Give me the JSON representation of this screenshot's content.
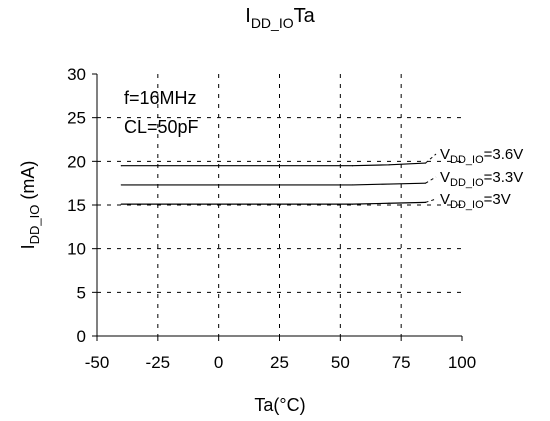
{
  "chart_data": {
    "type": "line",
    "title": "I_DD_IO–Ta",
    "title_parts": [
      {
        "text": "I",
        "sub": false
      },
      {
        "text": "DD_IO",
        "sub": true
      },
      {
        "text": "Ta",
        "sub": false
      }
    ],
    "xlabel": "Ta(°C)",
    "ylabel_parts": [
      {
        "text": "I",
        "sub": false
      },
      {
        "text": "DD_IO",
        "sub": true
      },
      {
        "text": " (mA)",
        "sub": false
      }
    ],
    "xlim": [
      -50,
      100
    ],
    "ylim": [
      0,
      30
    ],
    "xticks": [
      -50,
      -25,
      0,
      25,
      50,
      75,
      100
    ],
    "yticks": [
      0,
      5,
      10,
      15,
      20,
      25,
      30
    ],
    "grid": true,
    "annotations": [
      "f=16MHz",
      "CL=50pF"
    ],
    "series": [
      {
        "label_parts": [
          {
            "text": "V",
            "sub": false
          },
          {
            "text": "DD_IO",
            "sub": true
          },
          {
            "text": "=3.6V",
            "sub": false
          }
        ],
        "x": [
          -40,
          -25,
          0,
          25,
          55,
          70,
          85
        ],
        "y": [
          19.5,
          19.5,
          19.5,
          19.5,
          19.5,
          19.6,
          19.8
        ]
      },
      {
        "label_parts": [
          {
            "text": "V",
            "sub": false
          },
          {
            "text": "DD_IO",
            "sub": true
          },
          {
            "text": "=3.3V",
            "sub": false
          }
        ],
        "x": [
          -40,
          -25,
          0,
          25,
          55,
          70,
          85
        ],
        "y": [
          17.3,
          17.3,
          17.3,
          17.3,
          17.3,
          17.4,
          17.5
        ]
      },
      {
        "label_parts": [
          {
            "text": "V",
            "sub": false
          },
          {
            "text": "DD_IO",
            "sub": true
          },
          {
            "text": "=3V",
            "sub": false
          }
        ],
        "x": [
          -40,
          -25,
          0,
          25,
          55,
          70,
          85
        ],
        "y": [
          15.1,
          15.1,
          15.1,
          15.1,
          15.1,
          15.2,
          15.3
        ]
      }
    ]
  }
}
